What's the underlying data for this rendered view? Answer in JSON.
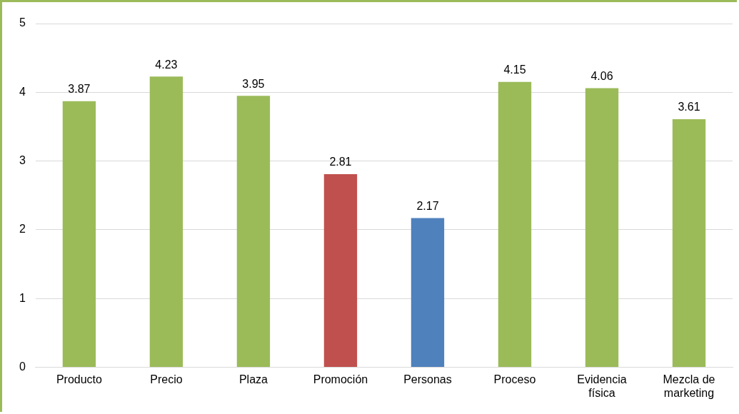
{
  "chart_data": {
    "type": "bar",
    "categories": [
      "Producto",
      "Precio",
      "Plaza",
      "Promoción",
      "Personas",
      "Proceso",
      "Evidencia física",
      "Mezcla de marketing"
    ],
    "values": [
      3.87,
      4.23,
      3.95,
      2.81,
      2.17,
      4.15,
      4.06,
      3.61
    ],
    "colors": [
      "#9bbb59",
      "#9bbb59",
      "#9bbb59",
      "#c0504d",
      "#4f81bd",
      "#9bbb59",
      "#9bbb59",
      "#9bbb59"
    ],
    "ylim": [
      0,
      5
    ],
    "yticks": [
      0,
      1,
      2,
      3,
      4,
      5
    ],
    "grid": "y",
    "data_labels": true
  }
}
